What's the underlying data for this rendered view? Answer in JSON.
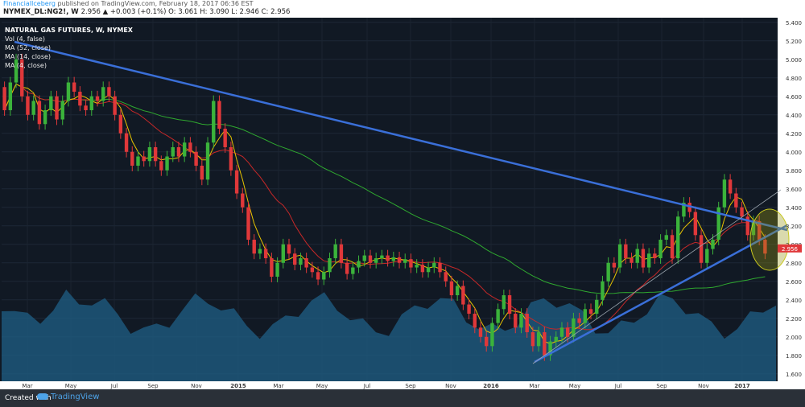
{
  "header": {
    "publisher": "FinancialIceberg",
    "published_text": "published on TradingView.com, February 18, 2017 06:36 EST",
    "symbol": "NYMEX_DL:NG2!, W",
    "quote": "2.956 ▲ +0.003 (+0.1%) O: 3.061 H: 3.090 L: 2.946 C: 2.956"
  },
  "legend": {
    "title": "NATURAL GAS FUTURES, W, NYMEX",
    "items": [
      "Vol (4, false)",
      "MA (52, close)",
      "MA (14, close)",
      "MA (4, close)"
    ]
  },
  "footer": {
    "created": "Created with",
    "brand": "TradingView"
  },
  "colors": {
    "background": "#111924",
    "up": "#3bb33b",
    "down": "#e0383a",
    "trendline": "#3a6fd8",
    "ma52": "#2fa82f",
    "ma14": "#c62828",
    "ma4": "#e6c200",
    "volume": "#1f5f86",
    "highlight": "#9a9a10"
  },
  "chart_data": {
    "type": "candlestick",
    "x_ticks": [
      "Mar",
      "May",
      "Jul",
      "Sep",
      "Nov",
      "2015",
      "Mar",
      "May",
      "Jul",
      "Sep",
      "Nov",
      "2016",
      "Mar",
      "May",
      "Jul",
      "Sep",
      "Nov",
      "2017"
    ],
    "y_ticks": [
      "5.400",
      "5.200",
      "5.000",
      "4.800",
      "4.600",
      "4.400",
      "4.200",
      "4.000",
      "3.800",
      "3.600",
      "3.400",
      "3.200",
      "3.000",
      "2.800",
      "2.600",
      "2.400",
      "2.200",
      "2.000",
      "1.800",
      "1.600"
    ],
    "ylim": [
      1.52,
      5.45
    ],
    "last_price_label": "2.956",
    "candles": [
      [
        4.7,
        4.45
      ],
      [
        4.45,
        4.75
      ],
      [
        4.75,
        5.0
      ],
      [
        5.0,
        4.6
      ],
      [
        4.6,
        4.4
      ],
      [
        4.4,
        4.55
      ],
      [
        4.55,
        4.3
      ],
      [
        4.3,
        4.45
      ],
      [
        4.45,
        4.6
      ],
      [
        4.6,
        4.35
      ],
      [
        4.35,
        4.55
      ],
      [
        4.55,
        4.75
      ],
      [
        4.75,
        4.65
      ],
      [
        4.65,
        4.5
      ],
      [
        4.5,
        4.45
      ],
      [
        4.45,
        4.6
      ],
      [
        4.6,
        4.55
      ],
      [
        4.55,
        4.7
      ],
      [
        4.7,
        4.6
      ],
      [
        4.6,
        4.4
      ],
      [
        4.4,
        4.2
      ],
      [
        4.2,
        4.0
      ],
      [
        4.0,
        3.85
      ],
      [
        3.85,
        3.95
      ],
      [
        3.95,
        3.9
      ],
      [
        3.9,
        4.05
      ],
      [
        4.05,
        3.9
      ],
      [
        3.9,
        3.8
      ],
      [
        3.8,
        3.95
      ],
      [
        3.95,
        4.05
      ],
      [
        4.05,
        3.95
      ],
      [
        3.95,
        4.1
      ],
      [
        4.1,
        4.0
      ],
      [
        4.0,
        3.85
      ],
      [
        3.85,
        3.7
      ],
      [
        3.7,
        4.1
      ],
      [
        4.1,
        4.55
      ],
      [
        4.55,
        4.25
      ],
      [
        4.25,
        4.05
      ],
      [
        4.05,
        3.8
      ],
      [
        3.8,
        3.55
      ],
      [
        3.55,
        3.4
      ],
      [
        3.4,
        3.05
      ],
      [
        3.05,
        2.9
      ],
      [
        2.9,
        2.95
      ],
      [
        2.95,
        2.85
      ],
      [
        2.85,
        2.65
      ],
      [
        2.65,
        2.8
      ],
      [
        2.8,
        3.0
      ],
      [
        3.0,
        2.9
      ],
      [
        2.9,
        2.78
      ],
      [
        2.78,
        2.85
      ],
      [
        2.85,
        2.75
      ],
      [
        2.75,
        2.7
      ],
      [
        2.7,
        2.62
      ],
      [
        2.62,
        2.7
      ],
      [
        2.7,
        2.85
      ],
      [
        2.85,
        3.0
      ],
      [
        3.0,
        2.8
      ],
      [
        2.8,
        2.68
      ],
      [
        2.68,
        2.75
      ],
      [
        2.75,
        2.82
      ],
      [
        2.82,
        2.88
      ],
      [
        2.88,
        2.8
      ],
      [
        2.8,
        2.85
      ],
      [
        2.85,
        2.88
      ],
      [
        2.88,
        2.82
      ],
      [
        2.82,
        2.86
      ],
      [
        2.86,
        2.8
      ],
      [
        2.8,
        2.84
      ],
      [
        2.84,
        2.75
      ],
      [
        2.75,
        2.78
      ],
      [
        2.78,
        2.7
      ],
      [
        2.7,
        2.75
      ],
      [
        2.75,
        2.8
      ],
      [
        2.8,
        2.7
      ],
      [
        2.7,
        2.6
      ],
      [
        2.6,
        2.45
      ],
      [
        2.45,
        2.55
      ],
      [
        2.55,
        2.35
      ],
      [
        2.35,
        2.25
      ],
      [
        2.25,
        2.1
      ],
      [
        2.1,
        2.0
      ],
      [
        2.0,
        1.9
      ],
      [
        1.9,
        2.15
      ],
      [
        2.15,
        2.3
      ],
      [
        2.3,
        2.45
      ],
      [
        2.45,
        2.25
      ],
      [
        2.25,
        2.1
      ],
      [
        2.1,
        2.25
      ],
      [
        2.25,
        2.05
      ],
      [
        2.05,
        1.9
      ],
      [
        1.9,
        2.05
      ],
      [
        2.05,
        1.8
      ],
      [
        1.8,
        1.95
      ],
      [
        1.95,
        2.0
      ],
      [
        2.0,
        2.1
      ],
      [
        2.1,
        2.0
      ],
      [
        2.0,
        2.2
      ],
      [
        2.2,
        2.15
      ],
      [
        2.15,
        2.3
      ],
      [
        2.3,
        2.25
      ],
      [
        2.25,
        2.4
      ],
      [
        2.4,
        2.6
      ],
      [
        2.6,
        2.8
      ],
      [
        2.8,
        2.75
      ],
      [
        2.75,
        3.0
      ],
      [
        3.0,
        2.85
      ],
      [
        2.85,
        2.8
      ],
      [
        2.8,
        2.95
      ],
      [
        2.95,
        2.75
      ],
      [
        2.75,
        2.9
      ],
      [
        2.9,
        2.85
      ],
      [
        2.85,
        3.05
      ],
      [
        3.05,
        3.1
      ],
      [
        3.1,
        2.85
      ],
      [
        2.85,
        3.3
      ],
      [
        3.3,
        3.45
      ],
      [
        3.45,
        3.35
      ],
      [
        3.35,
        3.1
      ],
      [
        3.1,
        2.8
      ],
      [
        2.8,
        2.95
      ],
      [
        2.95,
        3.05
      ],
      [
        3.05,
        3.4
      ],
      [
        3.4,
        3.7
      ],
      [
        3.7,
        3.55
      ],
      [
        3.55,
        3.4
      ],
      [
        3.4,
        3.3
      ],
      [
        3.3,
        3.1
      ],
      [
        3.1,
        3.25
      ],
      [
        3.25,
        3.05
      ],
      [
        3.05,
        2.9
      ]
    ]
  }
}
